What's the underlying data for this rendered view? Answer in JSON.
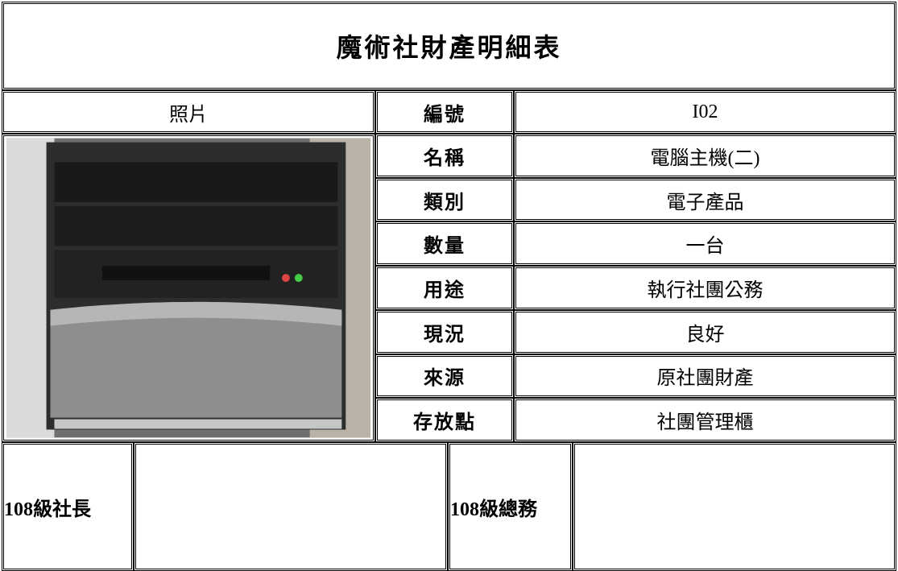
{
  "header": {
    "title": "魔術社財產明細表"
  },
  "photo_label": "照片",
  "details": [
    {
      "label": "編號",
      "value": "I02"
    },
    {
      "label": "名稱",
      "value": "電腦主機(二)"
    },
    {
      "label": "類別",
      "value": "電子產品"
    },
    {
      "label": "數量",
      "value": "一台"
    },
    {
      "label": "用途",
      "value": "執行社團公務"
    },
    {
      "label": "現況",
      "value": "良好"
    },
    {
      "label": "來源",
      "value": "原社團財產"
    },
    {
      "label": "存放點",
      "value": "社團管理櫃"
    }
  ],
  "signatures": [
    "108級社長",
    "108級總務"
  ]
}
